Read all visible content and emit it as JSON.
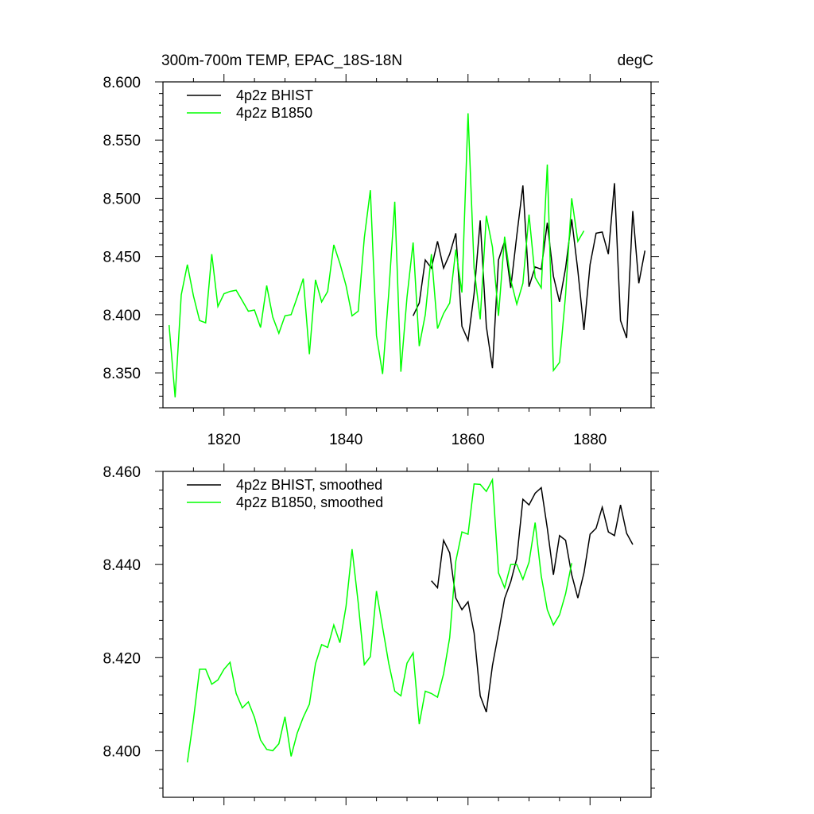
{
  "chart_data": [
    {
      "type": "line",
      "title": "300m-700m TEMP, EPAC_18S-18N",
      "units": "degC",
      "xlim": [
        1810,
        1890
      ],
      "ylim": [
        8.32,
        8.6
      ],
      "xticks": [
        1820,
        1840,
        1860,
        1880
      ],
      "xtick_labels": [
        "1820",
        "1840",
        "1860",
        "1880"
      ],
      "yticks": [
        8.35,
        8.4,
        8.45,
        8.5,
        8.55,
        8.6
      ],
      "ytick_labels": [
        "8.350",
        "8.400",
        "8.450",
        "8.500",
        "8.550",
        "8.600"
      ],
      "legend_position": "top-left",
      "series": [
        {
          "name": "4p2z BHIST",
          "color": "#000000",
          "x_start": 1851,
          "values": [
            8.399,
            8.41,
            8.447,
            8.44,
            8.463,
            8.44,
            8.452,
            8.47,
            8.39,
            8.378,
            8.418,
            8.481,
            8.39,
            8.354,
            8.447,
            8.463,
            8.423,
            8.468,
            8.511,
            8.424,
            8.441,
            8.439,
            8.479,
            8.433,
            8.411,
            8.44,
            8.482,
            8.438,
            8.387,
            8.443,
            8.47,
            8.471,
            8.452,
            8.513,
            8.395,
            8.38,
            8.489,
            8.427,
            8.455
          ]
        },
        {
          "name": "4p2z B1850",
          "color": "#00ff00",
          "x_start": 1811,
          "values": [
            8.391,
            8.329,
            8.417,
            8.443,
            8.416,
            8.395,
            8.393,
            8.452,
            8.407,
            8.418,
            8.42,
            8.421,
            8.412,
            8.403,
            8.404,
            8.389,
            8.425,
            8.398,
            8.384,
            8.399,
            8.4,
            8.415,
            8.431,
            8.366,
            8.43,
            8.411,
            8.42,
            8.46,
            8.444,
            8.425,
            8.399,
            8.403,
            8.466,
            8.507,
            8.382,
            8.349,
            8.418,
            8.497,
            8.351,
            8.415,
            8.462,
            8.373,
            8.4,
            8.452,
            8.388,
            8.401,
            8.41,
            8.456,
            8.419,
            8.573,
            8.44,
            8.396,
            8.485,
            8.458,
            8.399,
            8.467,
            8.43,
            8.409,
            8.427,
            8.486,
            8.432,
            8.423,
            8.529,
            8.352,
            8.359,
            8.417,
            8.5,
            8.463,
            8.472
          ]
        }
      ]
    },
    {
      "type": "line",
      "xlim": [
        1810,
        1890
      ],
      "ylim": [
        8.39,
        8.46
      ],
      "xticks": [
        1820,
        1840,
        1860,
        1880
      ],
      "yticks": [
        8.4,
        8.42,
        8.44,
        8.46
      ],
      "ytick_labels": [
        "8.400",
        "8.420",
        "8.440",
        "8.460"
      ],
      "legend_position": "top-left",
      "series": [
        {
          "name": "4p2z BHIST, smoothed",
          "color": "#000000",
          "x_start": 1854,
          "values": [
            8.4365,
            8.435,
            8.4452,
            8.4425,
            8.4328,
            8.4303,
            8.432,
            8.4253,
            8.4118,
            8.4083,
            8.4183,
            8.4253,
            8.4327,
            8.4363,
            8.4413,
            8.454,
            8.4528,
            8.4553,
            8.4565,
            8.4478,
            8.4378,
            8.4462,
            8.4452,
            8.4378,
            8.4328,
            8.4382,
            8.4465,
            8.4478,
            8.4523,
            8.447,
            8.4462,
            8.4528,
            8.4467,
            8.4443
          ]
        },
        {
          "name": "4p2z B1850, smoothed",
          "color": "#00ff00",
          "x_start": 1814,
          "values": [
            8.3975,
            8.4068,
            8.4175,
            8.4175,
            8.4143,
            8.4152,
            8.4175,
            8.419,
            8.4123,
            8.4092,
            8.4105,
            8.4072,
            8.4023,
            8.4003,
            8.4,
            8.4015,
            8.4073,
            8.3988,
            8.4038,
            8.4072,
            8.41,
            8.4187,
            8.4228,
            8.4222,
            8.427,
            8.4232,
            8.431,
            8.4433,
            8.4318,
            8.4185,
            8.4202,
            8.4343,
            8.4265,
            8.4188,
            8.4128,
            8.4118,
            8.4188,
            8.421,
            8.4057,
            8.4128,
            8.4123,
            8.4115,
            8.4165,
            8.4243,
            8.4407,
            8.447,
            8.4465,
            8.4573,
            8.4572,
            8.4557,
            8.4582,
            8.4382,
            8.435,
            8.44,
            8.44,
            8.4368,
            8.4405,
            8.449,
            8.4375,
            8.4303,
            8.427,
            8.4292,
            8.4337,
            8.4403
          ]
        }
      ]
    }
  ]
}
